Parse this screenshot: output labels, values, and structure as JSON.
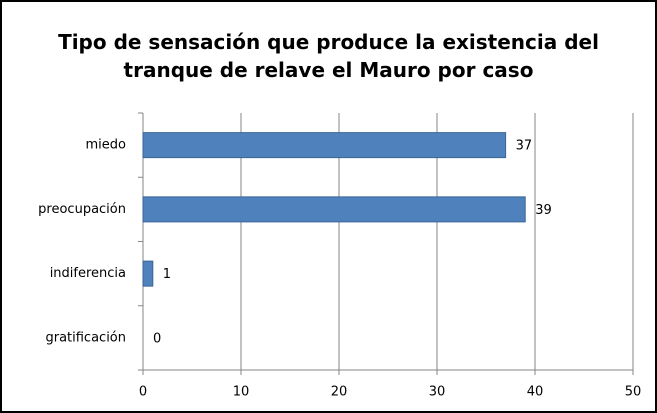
{
  "chart_data": {
    "type": "bar",
    "title": "Tipo de sensación que produce la existencia del tranque de relave el Mauro por caso",
    "categories": [
      "miedo",
      "preocupación",
      "indiferencia",
      "gratificación"
    ],
    "values": [
      37,
      39,
      1,
      0
    ],
    "color": "#4f81bd",
    "xlim": [
      0,
      50
    ],
    "xticks": [
      0,
      10,
      20,
      30,
      40,
      50
    ],
    "grid": true
  }
}
